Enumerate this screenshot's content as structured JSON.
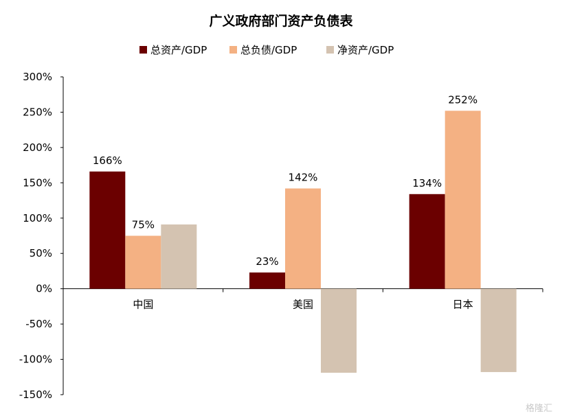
{
  "chart_data": {
    "type": "bar",
    "title": "广义政府部门资产负债表",
    "categories": [
      "中国",
      "美国",
      "日本"
    ],
    "series": [
      {
        "name": "总资产/GDP",
        "color": "#6b0000",
        "values": [
          166,
          23,
          134
        ],
        "labels": [
          "166%",
          "23%",
          "134%"
        ]
      },
      {
        "name": "总负债/GDP",
        "color": "#f4b183",
        "values": [
          75,
          142,
          252
        ],
        "labels": [
          "75%",
          "142%",
          "252%"
        ]
      },
      {
        "name": "净资产/GDP",
        "color": "#d4c3b1",
        "values": [
          91,
          -119,
          -118
        ],
        "labels": [
          "",
          "",
          ""
        ]
      }
    ],
    "ylim": [
      -150,
      300
    ],
    "yticks": [
      -150,
      -100,
      -50,
      0,
      50,
      100,
      150,
      200,
      250,
      300
    ],
    "ytick_labels": [
      "-150%",
      "-100%",
      "-50%",
      "0%",
      "50%",
      "100%",
      "150%",
      "200%",
      "250%",
      "300%"
    ],
    "xlabel": "",
    "ylabel": "",
    "legend_position": "top",
    "grid": false
  },
  "watermark": "格隆汇"
}
